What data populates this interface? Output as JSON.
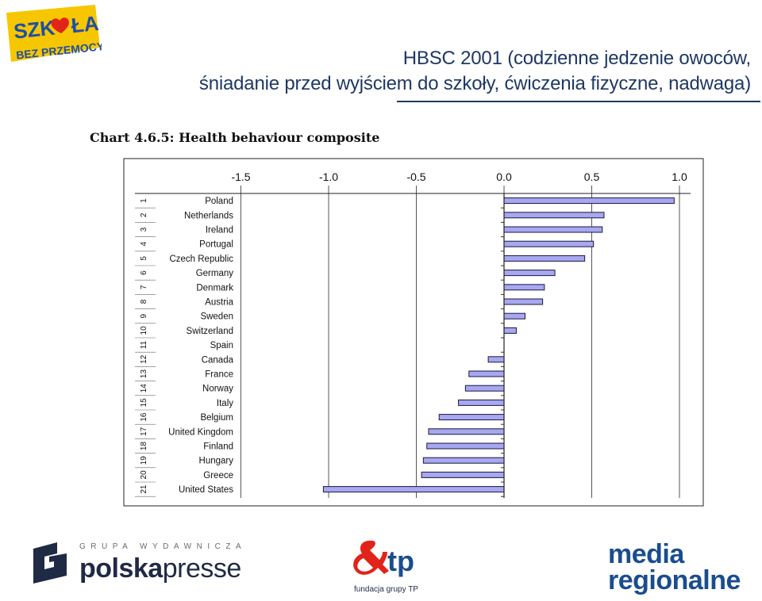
{
  "header": {
    "title_line1": "HBSC 2001 (codzienne jedzenie owoców,",
    "title_line2": "śniadanie przed wyjściem do szkoły, ćwiczenia fizyczne, nadwaga)"
  },
  "logos": {
    "szkola_line1": "SZK",
    "szkola_line1b": "ŁA",
    "szkola_line2": "BEZ PRZEMOCY",
    "polskapresse_tag": "GRUPA WYDAWNICZA",
    "polskapresse_bold": "polska",
    "polskapresse_rest": "presse",
    "tp_mark": "tp",
    "tp_sub": "fundacja grupy TP",
    "media_top": "media",
    "media_bottom": "regionalne"
  },
  "colors": {
    "title": "#1f3864",
    "bar_fill": "#a7a7f2",
    "bar_stroke": "#1a1a3a",
    "accent_red": "#e2231a",
    "accent_blue": "#1a4d8f"
  },
  "chart_data": {
    "type": "bar",
    "orientation": "horizontal",
    "title": "Chart 4.6.5: Health behaviour composite",
    "xlim": [
      -1.6,
      1.02
    ],
    "ticks": [
      "-1.5",
      "-1.0",
      "-0.5",
      "0.0",
      "0.5",
      "1.0"
    ],
    "tick_values": [
      -1.5,
      -1.0,
      -0.5,
      0.0,
      0.5,
      1.0
    ],
    "grid": "vertical",
    "ranks": [
      "1",
      "2",
      "3",
      "4",
      "5",
      "6",
      "7",
      "8",
      "9",
      "10",
      "11",
      "12",
      "13",
      "14",
      "15",
      "16",
      "17",
      "18",
      "19",
      "20",
      "21"
    ],
    "categories": [
      "Poland",
      "Netherlands",
      "Ireland",
      "Portugal",
      "Czech Republic",
      "Germany",
      "Denmark",
      "Austria",
      "Sweden",
      "Switzerland",
      "Spain",
      "Canada",
      "France",
      "Norway",
      "Italy",
      "Belgium",
      "United Kingdom",
      "Finland",
      "Hungary",
      "Greece",
      "United States"
    ],
    "values": [
      0.97,
      0.57,
      0.56,
      0.51,
      0.46,
      0.29,
      0.23,
      0.22,
      0.12,
      0.07,
      0.0,
      -0.09,
      -0.2,
      -0.22,
      -0.26,
      -0.37,
      -0.43,
      -0.44,
      -0.46,
      -0.47,
      -1.03
    ]
  }
}
